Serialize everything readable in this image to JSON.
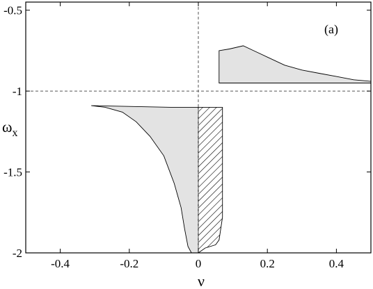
{
  "chart_data": {
    "type": "area",
    "panel_label": "(a)",
    "xlabel": "ν",
    "ylabel_main": "ω",
    "ylabel_sub": "x",
    "xlim": [
      -0.5,
      0.5
    ],
    "ylim": [
      -2.0,
      -0.45
    ],
    "x_ticks": [
      -0.4,
      -0.2,
      0,
      0.2,
      0.4
    ],
    "x_tick_labels": [
      "-0.4",
      "-0.2",
      "0",
      "0.2",
      "0.4"
    ],
    "y_ticks": [
      -0.5,
      -1,
      -1.5,
      -2
    ],
    "y_tick_labels": [
      "-0.5",
      "-1",
      "-1.5",
      "-2"
    ],
    "reference_lines": [
      {
        "axis": "x",
        "value": 0,
        "style": "dashed"
      },
      {
        "axis": "y",
        "value": -1,
        "style": "dashed"
      }
    ],
    "series": [
      {
        "fill": "#e3e3e3",
        "hatch": false,
        "points": [
          [
            -0.31,
            -1.09
          ],
          [
            -0.27,
            -1.1
          ],
          [
            -0.22,
            -1.13
          ],
          [
            -0.18,
            -1.19
          ],
          [
            -0.14,
            -1.28
          ],
          [
            -0.1,
            -1.4
          ],
          [
            -0.07,
            -1.57
          ],
          [
            -0.05,
            -1.72
          ],
          [
            -0.04,
            -1.85
          ],
          [
            -0.03,
            -1.96
          ],
          [
            -0.02,
            -2.0
          ],
          [
            0.0,
            -2.0
          ],
          [
            0.0,
            -1.1
          ],
          [
            -0.08,
            -1.1
          ]
        ]
      },
      {
        "fill": "#ffffff",
        "hatch": true,
        "points": [
          [
            0.0,
            -1.1
          ],
          [
            0.07,
            -1.1
          ],
          [
            0.07,
            -1.78
          ],
          [
            0.06,
            -1.92
          ],
          [
            0.05,
            -1.95
          ],
          [
            0.02,
            -1.97
          ],
          [
            0.0,
            -2.0
          ]
        ]
      },
      {
        "fill": "#e3e3e3",
        "hatch": false,
        "points": [
          [
            0.06,
            -0.75
          ],
          [
            0.09,
            -0.74
          ],
          [
            0.13,
            -0.72
          ],
          [
            0.16,
            -0.75
          ],
          [
            0.2,
            -0.79
          ],
          [
            0.25,
            -0.84
          ],
          [
            0.3,
            -0.87
          ],
          [
            0.35,
            -0.89
          ],
          [
            0.4,
            -0.91
          ],
          [
            0.45,
            -0.93
          ],
          [
            0.5,
            -0.94
          ],
          [
            0.5,
            -0.95
          ],
          [
            0.3,
            -0.95
          ],
          [
            0.06,
            -0.95
          ]
        ]
      }
    ]
  }
}
